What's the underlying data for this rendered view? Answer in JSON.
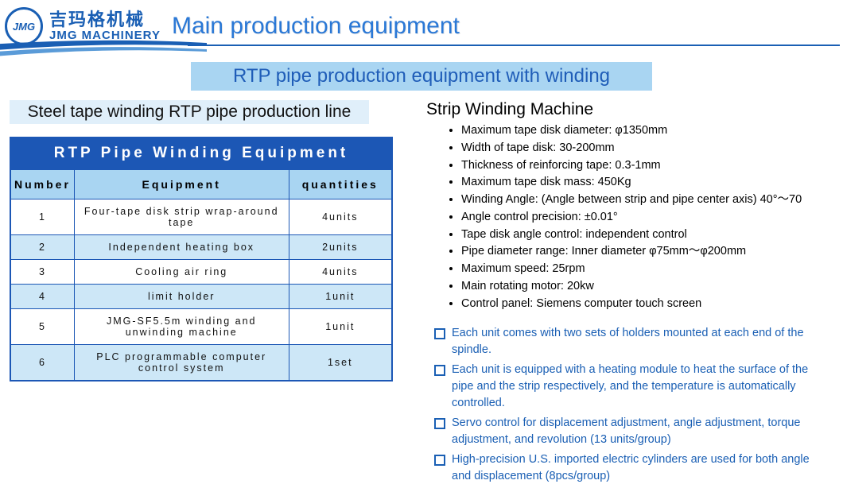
{
  "logo": {
    "abbr": "JMG",
    "cn": "吉玛格机械",
    "en": "JMG MACHINERY"
  },
  "main_title": "Main production equipment",
  "subtitle": "RTP pipe production equipment with winding",
  "left_heading": "Steel tape winding RTP pipe production line",
  "table": {
    "caption": "RTP Pipe Winding Equipment",
    "columns": [
      "Number",
      "Equipment",
      "quantities"
    ],
    "rows": [
      [
        "1",
        "Four-tape disk strip wrap-around tape",
        "4units"
      ],
      [
        "2",
        "Independent heating box",
        "2units"
      ],
      [
        "3",
        "Cooling air ring",
        "4units"
      ],
      [
        "4",
        "limit holder",
        "1unit"
      ],
      [
        "5",
        "JMG-SF5.5m winding and unwinding machine",
        "1unit"
      ],
      [
        "6",
        "PLC programmable computer control system",
        "1set"
      ]
    ],
    "col_widths": [
      "80px",
      "270px",
      "130px"
    ]
  },
  "right_heading": "Strip Winding Machine",
  "specs": [
    "Maximum tape disk diameter: φ1350mm",
    "Width of tape disk: 30-200mm",
    "Thickness of reinforcing tape: 0.3-1mm",
    "Maximum tape disk mass: 450Kg",
    "Winding Angle: (Angle between strip and pipe center axis) 40°～70",
    "Angle control precision: ±0.01°",
    "Tape disk angle control: independent control",
    "Pipe diameter range: Inner diameter φ75mm～φ200mm",
    "Maximum speed: 25rpm",
    "Main rotating motor: 20kw",
    "Control panel: Siemens computer touch screen"
  ],
  "features": [
    "Each unit comes with two sets of holders mounted at each end of the spindle.",
    "Each unit is equipped with a heating module to heat the surface of the pipe and the strip respectively, and the temperature is automatically controlled.",
    "Servo control for displacement adjustment, angle adjustment, torque adjustment, and revolution (13 units/group)",
    "High-precision U.S. imported electric cylinders are used for both angle and displacement (8pcs/group)"
  ],
  "colors": {
    "brand_blue": "#1a5fb4",
    "title_blue": "#2a78d6",
    "light_blue": "#a9d5f2",
    "pale_blue": "#e0effa",
    "row_alt": "#cde7f7",
    "table_border": "#1c57b5"
  }
}
